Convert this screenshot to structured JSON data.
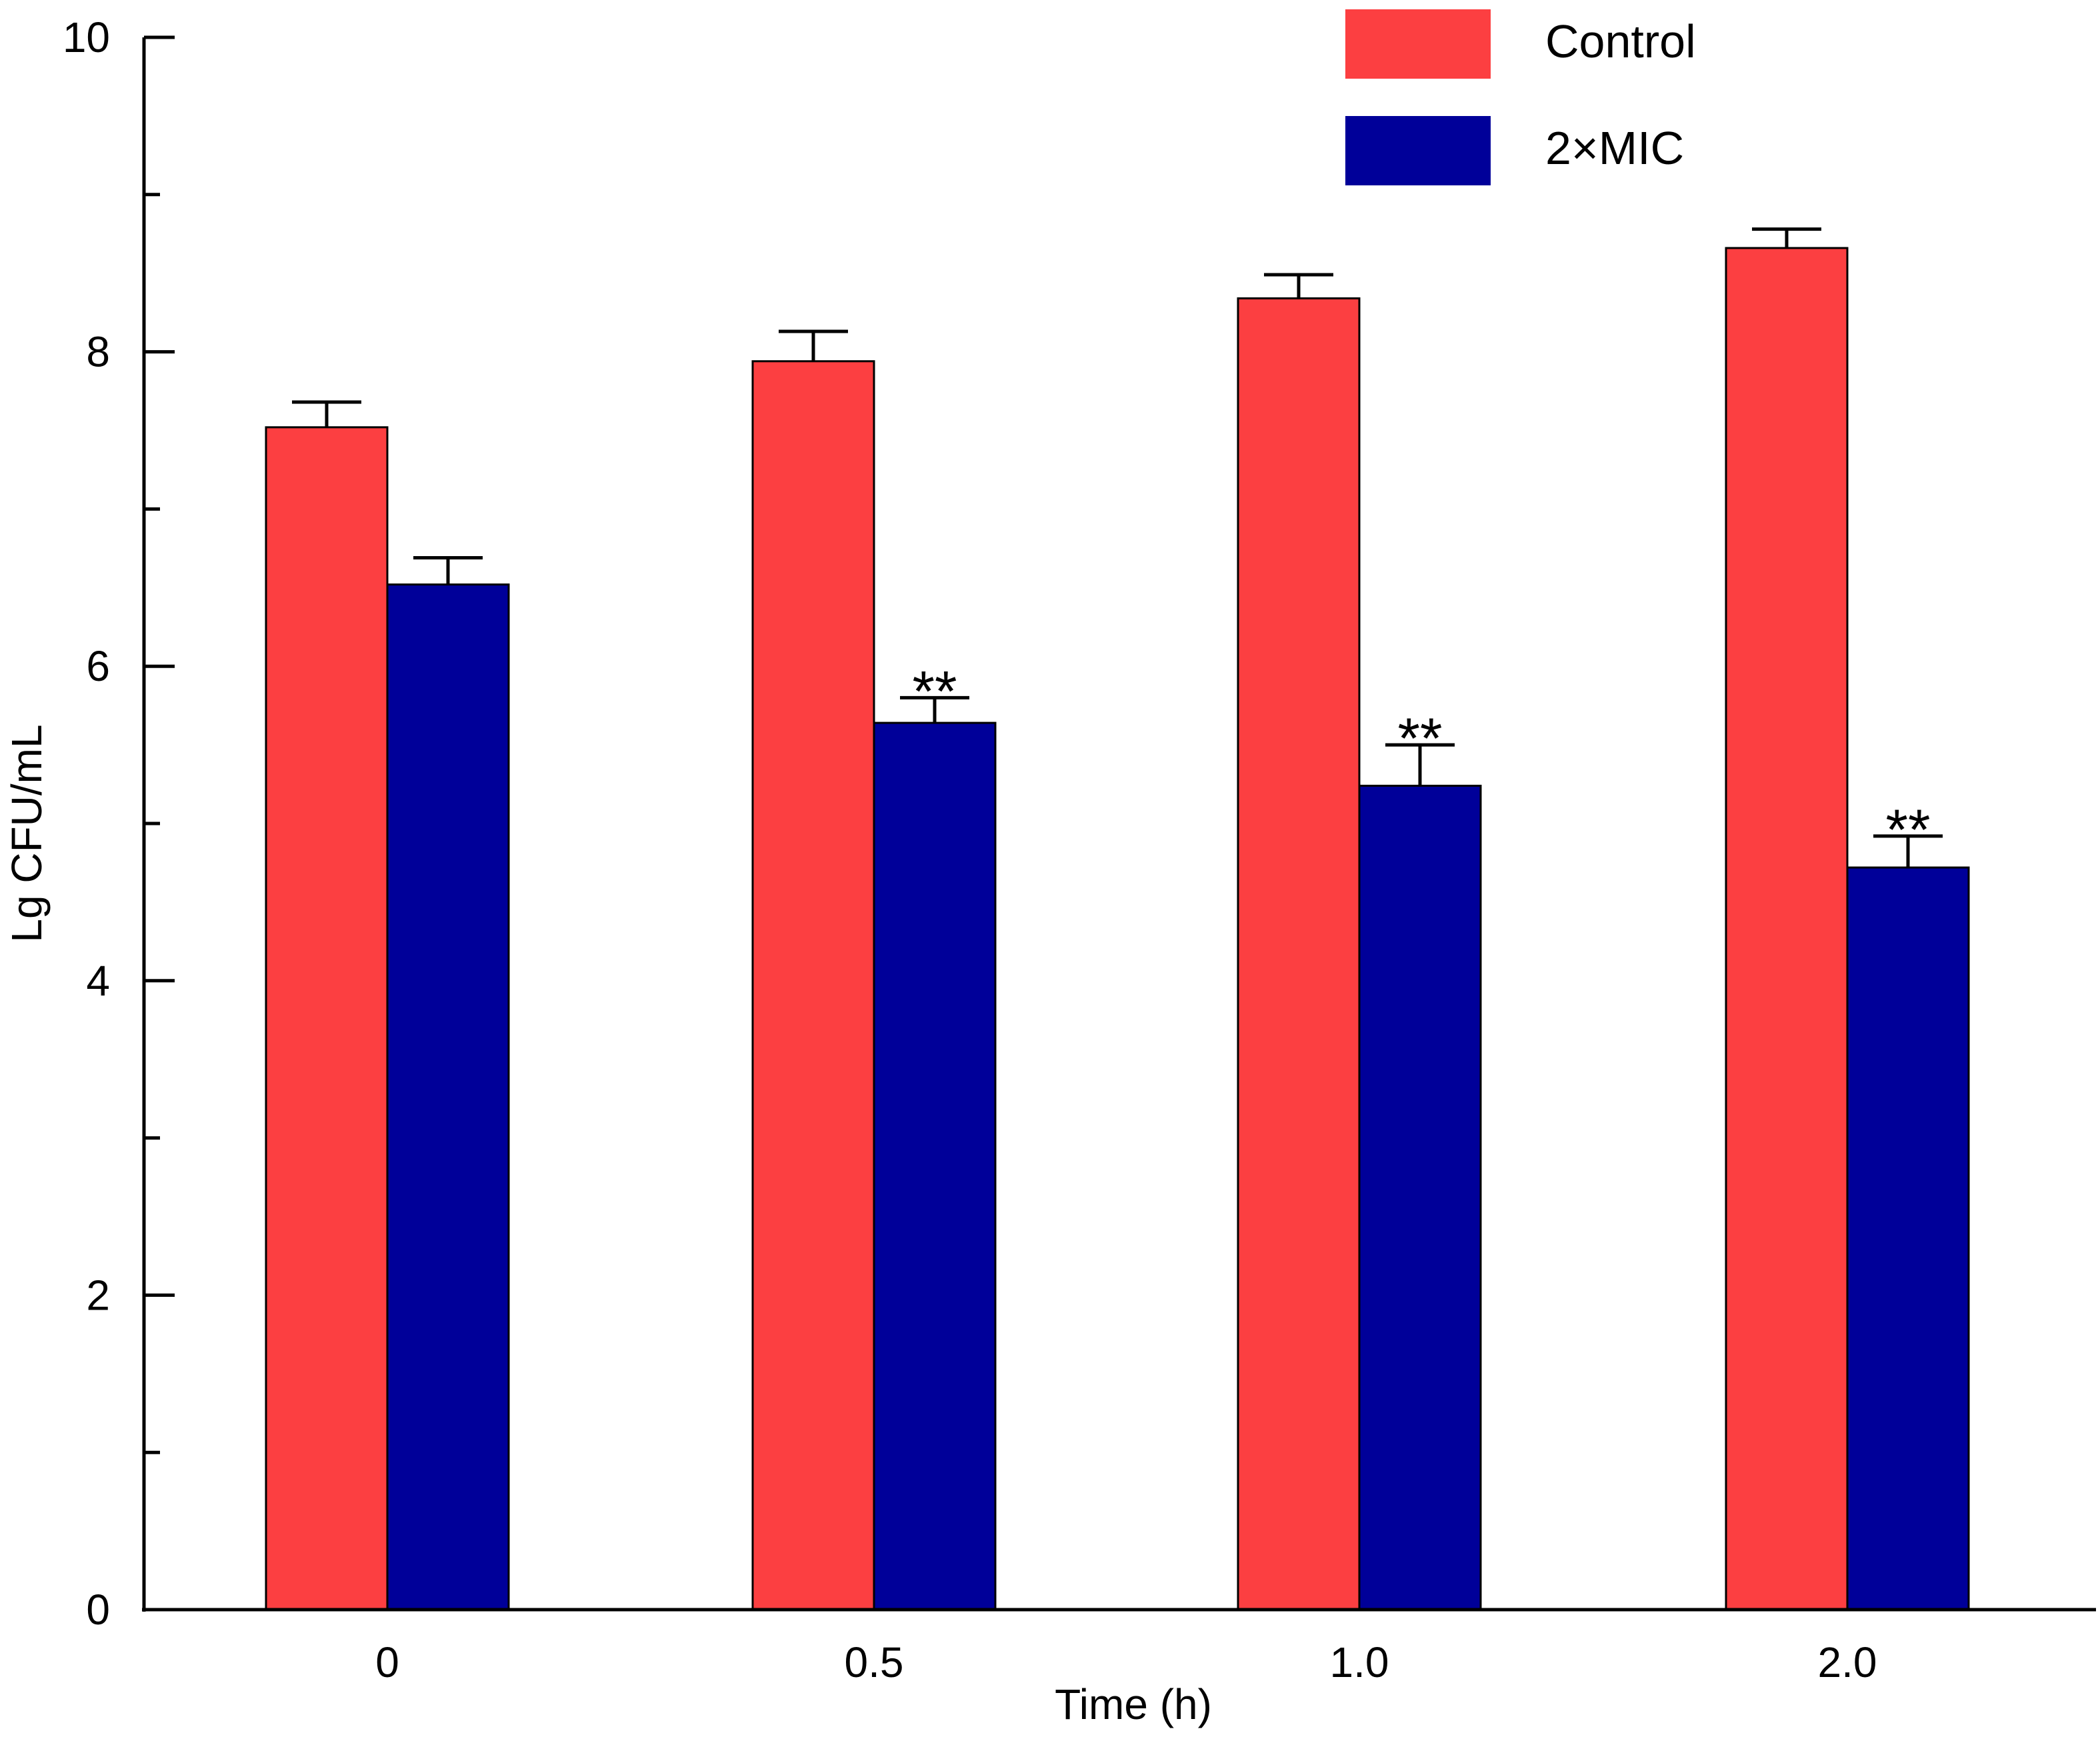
{
  "chart_data": {
    "type": "bar",
    "title": "",
    "xlabel": "Time (h)",
    "ylabel": "Lg CFU/mL",
    "categories": [
      "0",
      "0.5",
      "1.0",
      "2.0"
    ],
    "ylim": [
      0,
      10
    ],
    "yticks_major": [
      0,
      2,
      4,
      6,
      8,
      10
    ],
    "yticks_minor": [
      1,
      3,
      5,
      7,
      9
    ],
    "grid": false,
    "legend_position": "top-right",
    "series": [
      {
        "name": "Control",
        "color": "#fc3f41",
        "values": [
          7.52,
          7.94,
          8.34,
          8.66
        ],
        "errors": [
          0.16,
          0.19,
          0.15,
          0.12
        ],
        "annotations": [
          "",
          "",
          "",
          ""
        ]
      },
      {
        "name": "2×MIC",
        "color": "#000099",
        "values": [
          6.52,
          5.64,
          5.24,
          4.72
        ],
        "errors": [
          0.17,
          0.16,
          0.26,
          0.2
        ],
        "annotations": [
          "",
          "**",
          "**",
          "**"
        ]
      }
    ]
  }
}
